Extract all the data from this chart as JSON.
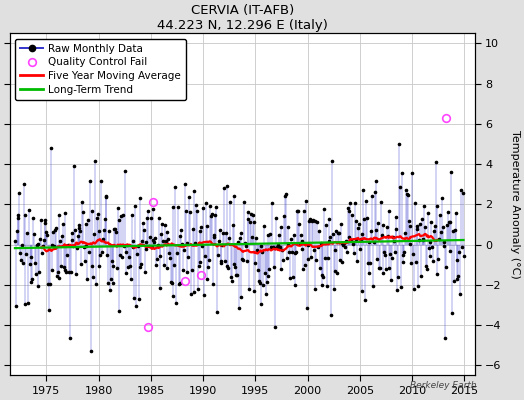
{
  "title": "CERVIA (IT-AFB)",
  "subtitle": "44.223 N, 12.296 E (Italy)",
  "ylabel": "Temperature Anomaly (°C)",
  "xlim": [
    1971.5,
    2016.0
  ],
  "ylim": [
    -6.5,
    10.5
  ],
  "yticks": [
    -6,
    -4,
    -2,
    0,
    2,
    4,
    6,
    8,
    10
  ],
  "xticks": [
    1975,
    1980,
    1985,
    1990,
    1995,
    2000,
    2005,
    2010,
    2015
  ],
  "background_color": "#e0e0e0",
  "plot_bg_color": "#ffffff",
  "grid_color": "#c8c8c8",
  "raw_line_color": "#3333cc",
  "raw_marker_color": "#000000",
  "moving_avg_color": "#ff0000",
  "trend_color": "#00bb00",
  "qc_fail_color": "#ff44ff",
  "watermark": "Berkeley Earth",
  "seed": 17,
  "years_start": 1972,
  "years_end": 2014,
  "noise_std": 1.5,
  "trend_slope": 0.012,
  "qc_fail_times": [
    1985.2,
    1988.3,
    1989.8,
    1984.7,
    2013.2
  ],
  "qc_fail_values": [
    2.1,
    -1.8,
    -1.5,
    -4.1,
    6.3
  ]
}
